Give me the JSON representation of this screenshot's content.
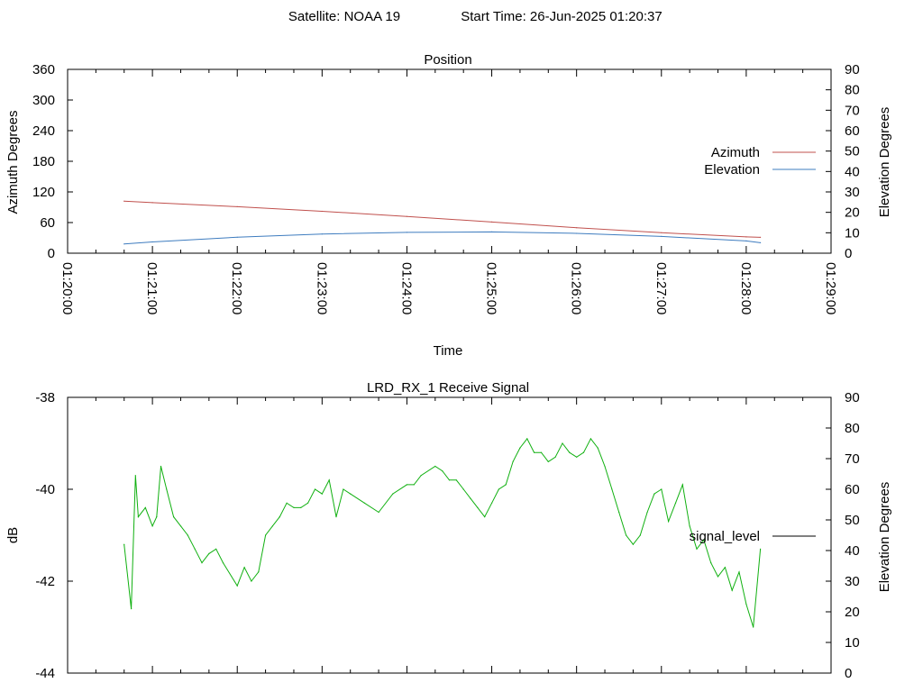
{
  "header": {
    "satellite_label": "Satellite: NOAA 19",
    "start_label": "Start Time: 26-Jun-2025 01:20:37"
  },
  "colors": {
    "azimuth": "#c0504d",
    "elevation": "#3e7cbf",
    "signal": "#10b010",
    "legend_signal": "#000000"
  },
  "chart_data": [
    {
      "type": "line",
      "title": "Position",
      "xlabel": "Time",
      "ylabel": "Azimuth Degrees",
      "y2label": "Elevation Degrees",
      "xlim": [
        "01:20:00",
        "01:29:00"
      ],
      "ylim": [
        0,
        360
      ],
      "y2lim": [
        0,
        90
      ],
      "y_ticks": [
        "0",
        "60",
        "120",
        "180",
        "240",
        "300",
        "360"
      ],
      "y2_ticks": [
        "0",
        "10",
        "20",
        "30",
        "40",
        "50",
        "60",
        "70",
        "80",
        "90"
      ],
      "x_ticks": [
        "01:20:00",
        "01:21:00",
        "01:22:00",
        "01:23:00",
        "01:24:00",
        "01:25:00",
        "01:26:00",
        "01:27:00",
        "01:28:00",
        "01:29:00"
      ],
      "legend_position": "right",
      "series": [
        {
          "name": "Azimuth",
          "axis": "left",
          "x": [
            "01:20:40",
            "01:21:00",
            "01:22:00",
            "01:23:00",
            "01:24:00",
            "01:25:00",
            "01:26:00",
            "01:27:00",
            "01:28:00",
            "01:28:10"
          ],
          "values": [
            102,
            99,
            91,
            82,
            72,
            61,
            50,
            40,
            32,
            31
          ]
        },
        {
          "name": "Elevation",
          "axis": "right",
          "x": [
            "01:20:40",
            "01:21:00",
            "01:22:00",
            "01:23:00",
            "01:24:00",
            "01:25:00",
            "01:26:00",
            "01:27:00",
            "01:28:00",
            "01:28:10"
          ],
          "values": [
            4.5,
            5.5,
            7.8,
            9.4,
            10.2,
            10.4,
            9.7,
            8.2,
            6,
            5.1
          ]
        }
      ]
    },
    {
      "type": "line",
      "title": "LRD_RX_1 Receive Signal",
      "xlabel": "",
      "ylabel": "dB",
      "y2label": "Elevation Degrees",
      "xlim": [
        "01:20:00",
        "01:29:00"
      ],
      "ylim": [
        -44,
        -38
      ],
      "y2lim": [
        0,
        90
      ],
      "y_ticks": [
        "-44",
        "-42",
        "-40",
        "-38"
      ],
      "y2_ticks": [
        "0",
        "10",
        "20",
        "30",
        "40",
        "50",
        "60",
        "70",
        "80",
        "90"
      ],
      "legend_position": "right",
      "series": [
        {
          "name": "signal_level",
          "axis": "left",
          "x": [
            "01:20:40",
            "01:20:45",
            "01:20:48",
            "01:20:50",
            "01:20:55",
            "01:21:00",
            "01:21:03",
            "01:21:06",
            "01:21:10",
            "01:21:15",
            "01:21:20",
            "01:21:25",
            "01:21:30",
            "01:21:35",
            "01:21:40",
            "01:21:45",
            "01:21:50",
            "01:22:00",
            "01:22:05",
            "01:22:10",
            "01:22:15",
            "01:22:20",
            "01:22:25",
            "01:22:30",
            "01:22:35",
            "01:22:40",
            "01:22:45",
            "01:22:50",
            "01:22:55",
            "01:23:00",
            "01:23:05",
            "01:23:10",
            "01:23:15",
            "01:23:20",
            "01:23:30",
            "01:23:40",
            "01:23:50",
            "01:24:00",
            "01:24:05",
            "01:24:10",
            "01:24:20",
            "01:24:25",
            "01:24:30",
            "01:24:35",
            "01:24:40",
            "01:24:45",
            "01:24:50",
            "01:24:55",
            "01:25:00",
            "01:25:05",
            "01:25:10",
            "01:25:15",
            "01:25:20",
            "01:25:25",
            "01:25:30",
            "01:25:35",
            "01:25:40",
            "01:25:45",
            "01:25:50",
            "01:25:55",
            "01:26:00",
            "01:26:05",
            "01:26:10",
            "01:26:15",
            "01:26:20",
            "01:26:25",
            "01:26:30",
            "01:26:35",
            "01:26:40",
            "01:26:45",
            "01:26:50",
            "01:26:55",
            "01:27:00",
            "01:27:05",
            "01:27:10",
            "01:27:15",
            "01:27:20",
            "01:27:25",
            "01:27:30",
            "01:27:35",
            "01:27:40",
            "01:27:45",
            "01:27:50",
            "01:27:55",
            "01:28:00",
            "01:28:05",
            "01:28:10"
          ],
          "values": [
            -41.2,
            -42.6,
            -39.7,
            -40.6,
            -40.4,
            -40.8,
            -40.6,
            -39.5,
            -40.0,
            -40.6,
            -40.8,
            -41.0,
            -41.3,
            -41.6,
            -41.4,
            -41.3,
            -41.6,
            -42.1,
            -41.7,
            -42.0,
            -41.8,
            -41.0,
            -40.8,
            -40.6,
            -40.3,
            -40.4,
            -40.4,
            -40.3,
            -40.0,
            -40.1,
            -39.8,
            -40.6,
            -40.0,
            -40.1,
            -40.3,
            -40.5,
            -40.1,
            -39.9,
            -39.9,
            -39.7,
            -39.5,
            -39.6,
            -39.8,
            -39.8,
            -40.0,
            -40.2,
            -40.4,
            -40.6,
            -40.3,
            -40.0,
            -39.9,
            -39.4,
            -39.1,
            -38.9,
            -39.2,
            -39.2,
            -39.4,
            -39.3,
            -39.0,
            -39.2,
            -39.3,
            -39.2,
            -38.9,
            -39.1,
            -39.5,
            -40.0,
            -40.5,
            -41.0,
            -41.2,
            -41.0,
            -40.5,
            -40.1,
            -40.0,
            -40.7,
            -40.3,
            -39.9,
            -40.8,
            -41.3,
            -41.1,
            -41.6,
            -41.9,
            -41.7,
            -42.2,
            -41.8,
            -42.5,
            -43.0,
            -41.3
          ]
        }
      ]
    }
  ]
}
